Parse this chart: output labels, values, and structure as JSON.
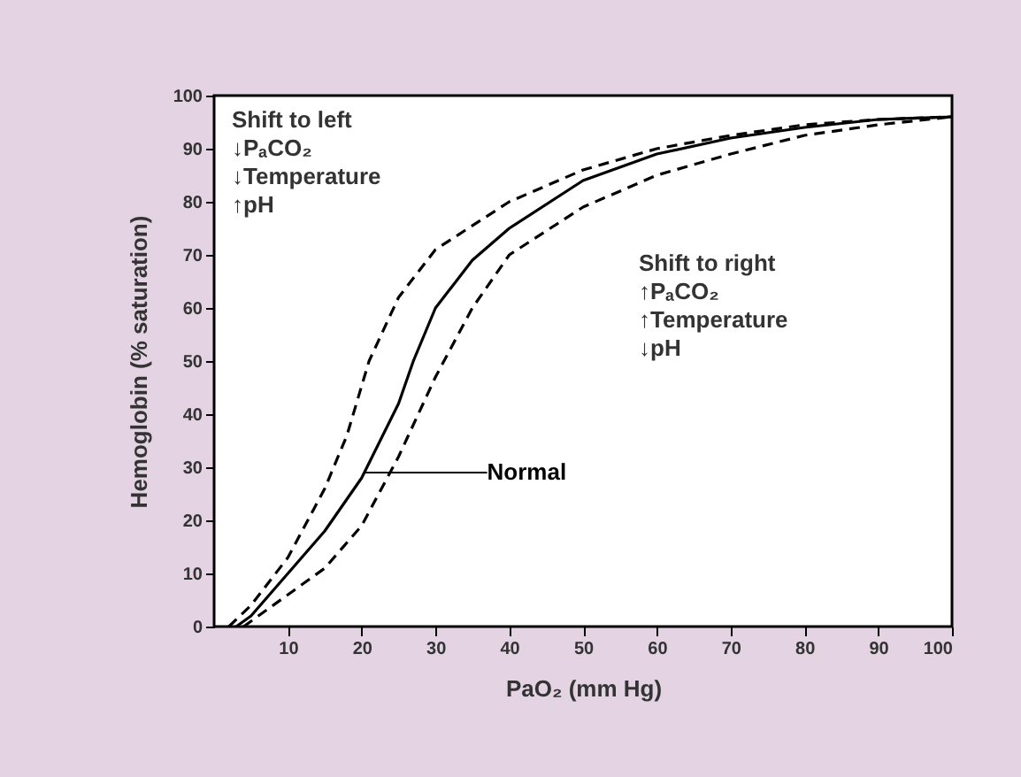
{
  "chart_data": {
    "type": "line",
    "xlabel": "PaO₂ (mm Hg)",
    "ylabel": "Hemoglobin (% saturation)",
    "xlim": [
      0,
      100
    ],
    "xticks": [
      10,
      20,
      30,
      40,
      50,
      60,
      70,
      80,
      90,
      100
    ],
    "ylim": [
      0,
      100
    ],
    "yticks": [
      0,
      10,
      20,
      30,
      40,
      50,
      60,
      70,
      80,
      90,
      100
    ],
    "grid": false,
    "marker": "none",
    "series": [
      {
        "color": "#000000",
        "line_style": "dashed",
        "x": [
          2,
          5,
          10,
          15,
          18,
          21,
          25,
          30,
          40,
          50,
          60,
          70,
          80,
          90,
          100
        ],
        "values": [
          0,
          4,
          13,
          26,
          36,
          50,
          62,
          71,
          80,
          86,
          90,
          92.5,
          94.5,
          95.5,
          96
        ]
      },
      {
        "color": "#000000",
        "line_style": "solid",
        "x": [
          3,
          5,
          10,
          15,
          20,
          25,
          27,
          30,
          35,
          40,
          50,
          60,
          70,
          80,
          90,
          100
        ],
        "values": [
          0,
          2,
          10,
          18,
          28,
          42,
          50,
          60,
          69,
          75,
          84,
          89,
          92,
          94,
          95.5,
          96
        ]
      },
      {
        "color": "#000000",
        "line_style": "dashed",
        "x": [
          4,
          5,
          10,
          15,
          20,
          25,
          30,
          35,
          40,
          50,
          60,
          70,
          80,
          90,
          100
        ],
        "values": [
          0,
          1,
          6,
          11,
          19,
          32,
          47,
          60,
          70,
          79,
          85,
          89,
          92.5,
          94.5,
          96
        ]
      }
    ],
    "annotations": [
      "Shift to left",
      "↓PₐCO₂",
      "↓Temperature",
      "↑pH",
      "Shift to right",
      "↑PₐCO₂",
      "↑Temperature",
      "↓pH",
      {
        "text": "Normal",
        "x": 20.5,
        "y": 29
      }
    ]
  }
}
